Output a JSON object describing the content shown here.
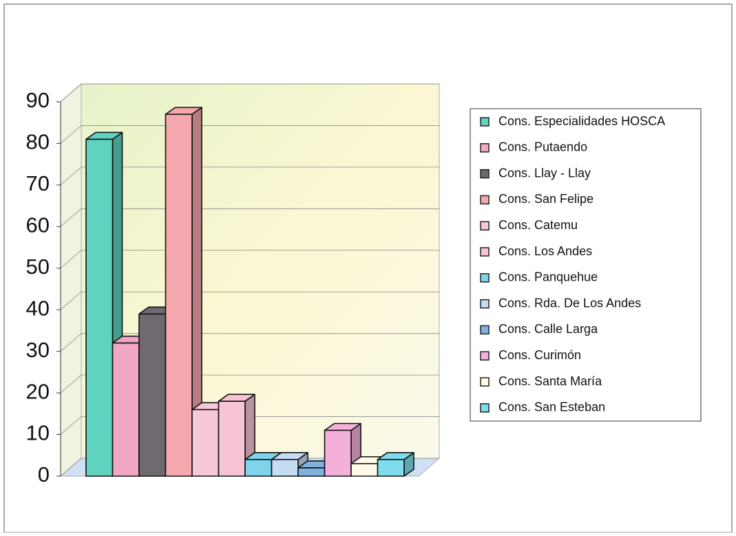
{
  "chart_data": {
    "type": "bar3d",
    "series": [
      {
        "name": "Cons. Especialidades HOSCA",
        "color": "#5fd2c0",
        "values": [
          81
        ]
      },
      {
        "name": "Cons. Putaendo",
        "color": "#f2a6c6",
        "values": [
          32
        ]
      },
      {
        "name": "Cons. Llay - Llay",
        "color": "#6e6a70",
        "values": [
          39
        ]
      },
      {
        "name": "Cons. San Felipe",
        "color": "#f4a8ae",
        "values": [
          87
        ]
      },
      {
        "name": "Cons. Catemu",
        "color": "#f7c8d8",
        "values": [
          16
        ]
      },
      {
        "name": "Cons. Los Andes",
        "color": "#f7c4d4",
        "values": [
          18
        ]
      },
      {
        "name": "Cons. Panquehue",
        "color": "#7fd4ec",
        "values": [
          4
        ]
      },
      {
        "name": "Cons. Rda. De Los Andes",
        "color": "#c6dcf2",
        "values": [
          4
        ]
      },
      {
        "name": "Cons. Calle Larga",
        "color": "#7fb2de",
        "values": [
          2
        ]
      },
      {
        "name": "Cons. Curimón",
        "color": "#f2b0da",
        "values": [
          11
        ]
      },
      {
        "name": "Cons. Santa María",
        "color": "#fffbe6",
        "values": [
          3
        ]
      },
      {
        "name": "Cons. San Esteban",
        "color": "#7fdcec",
        "values": [
          4
        ]
      }
    ],
    "ylim": [
      0,
      90
    ],
    "yticks": [
      0,
      10,
      20,
      30,
      40,
      50,
      60,
      70,
      80,
      90
    ],
    "grid": true,
    "legend": "right"
  }
}
